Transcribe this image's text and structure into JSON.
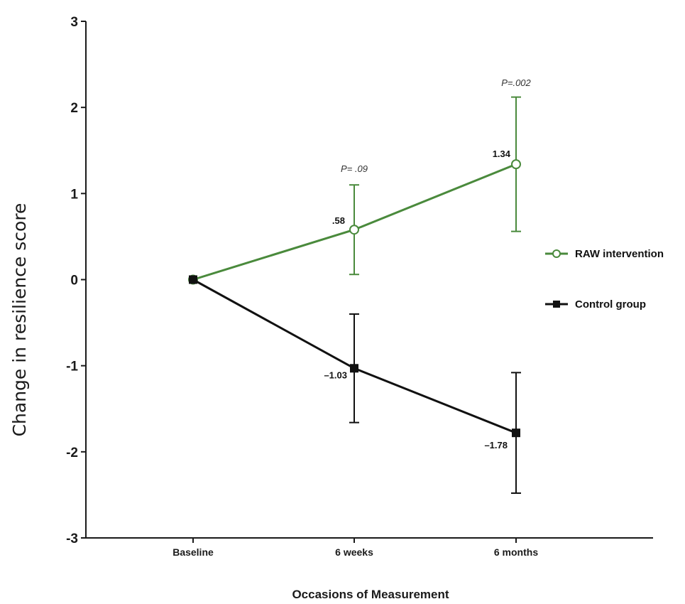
{
  "chart_data": {
    "type": "line",
    "title": "",
    "xlabel": "Occasions of Measurement",
    "ylabel": "Change in resilience score",
    "categories": [
      "Baseline",
      "6 weeks",
      "6 months"
    ],
    "ylim": [
      -3,
      3
    ],
    "yticks": [
      "3",
      "2",
      "1",
      "0",
      "-1",
      "-2",
      "-3"
    ],
    "grid": false,
    "legend_position": "right",
    "series": [
      {
        "name": "RAW intervention",
        "color": "#4a8a3c",
        "marker": "open-circle",
        "values": [
          0,
          0.58,
          1.34
        ],
        "error_low": [
          0,
          0.06,
          0.56
        ],
        "error_high": [
          0,
          1.1,
          2.12
        ],
        "labels": [
          "",
          ".58",
          "1.34"
        ]
      },
      {
        "name": "Control group",
        "color": "#111111",
        "marker": "filled-square",
        "values": [
          0,
          -1.03,
          -1.78
        ],
        "error_low": [
          0,
          -1.66,
          -2.48
        ],
        "error_high": [
          0,
          -0.4,
          -1.08
        ],
        "labels": [
          "",
          "–1.03",
          "–1.78"
        ]
      }
    ],
    "annotations": [
      {
        "category_index": 1,
        "y": 1.25,
        "prefix": "P",
        "text": "= .09"
      },
      {
        "category_index": 2,
        "y": 2.25,
        "prefix": "P",
        "text": "=.002"
      }
    ]
  }
}
